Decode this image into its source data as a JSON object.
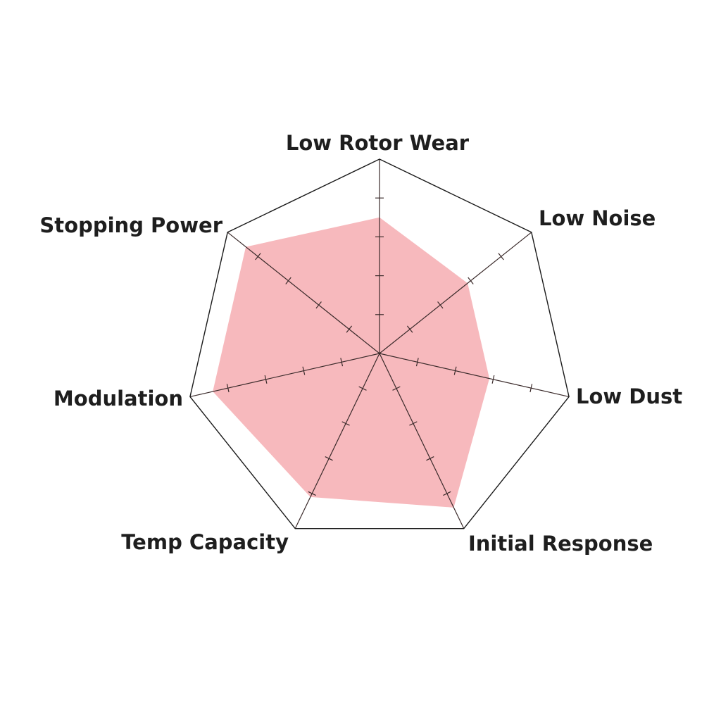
{
  "chart_data": {
    "type": "radar",
    "categories": [
      "Low Rotor Wear",
      "Low Noise",
      "Low Dust",
      "Initial Response",
      "Temp Capacity",
      "Modulation",
      "Stopping Power"
    ],
    "values": [
      3.5,
      2.9,
      2.9,
      4.4,
      4.1,
      4.4,
      4.4
    ],
    "rlim": [
      0,
      5
    ],
    "ticks": [
      1,
      2,
      3,
      4,
      5
    ],
    "grid": true,
    "colors": {
      "fill": "#f7b9bd",
      "axis": "#3a2a2a",
      "outline": "#1a1a1a",
      "text": "#1e1e1e"
    }
  }
}
